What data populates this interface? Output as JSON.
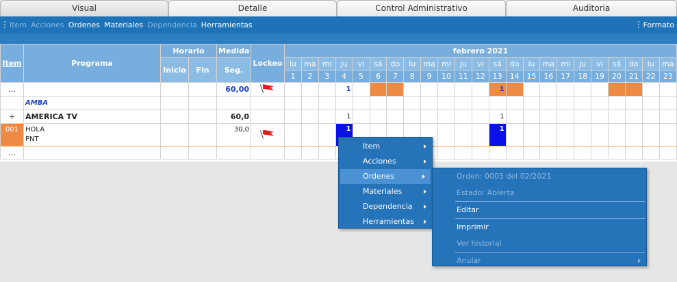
{
  "tabs": [
    "Visual",
    "Detalle",
    "Control Administrativo",
    "Auditoria"
  ],
  "toolbar": {
    "items": [
      "Item",
      "Acciones",
      "Ordenes",
      "Materiales",
      "Dependencia",
      "Herramientas"
    ],
    "format": "Formato"
  },
  "grid": {
    "col_item": "Item",
    "col_programa": "Programa",
    "col_horario": "Horario",
    "col_inicio": "Inicio",
    "col_fin": "Fin",
    "col_medida": "Medida",
    "col_seg": "Seg.",
    "col_lockeo": "Lockeo",
    "month": "febrero 2021",
    "weekdays": [
      "lu",
      "ma",
      "mi",
      "ju",
      "vi",
      "sá",
      "do",
      "lu",
      "ma",
      "mi",
      "ju",
      "vi",
      "sá",
      "do",
      "lu",
      "ma",
      "mi",
      "ju",
      "vi",
      "sá",
      "do",
      "lu",
      "ma"
    ],
    "days": [
      "1",
      "2",
      "3",
      "4",
      "5",
      "6",
      "7",
      "8",
      "9",
      "10",
      "11",
      "12",
      "13",
      "14",
      "15",
      "16",
      "17",
      "18",
      "19",
      "20",
      "21",
      "22",
      "23"
    ],
    "rows": {
      "r1": {
        "item": "...",
        "seg": "60,00",
        "d4": "1",
        "d13": "1"
      },
      "r2": {
        "programa": "AMBA"
      },
      "r3": {
        "item": "+",
        "programa": "AMERICA TV",
        "seg": "60,0",
        "d4": "1",
        "d13": "1"
      },
      "r4": {
        "item": "001",
        "programa_l1": "HOLA",
        "programa_l2": "PNT",
        "seg": "30,0",
        "d4": "1",
        "d13": "1"
      },
      "r5": {
        "item": "..."
      }
    }
  },
  "context_menu": {
    "items": [
      "Item",
      "Acciones",
      "Ordenes",
      "Materiales",
      "Dependencia",
      "Herramientas"
    ]
  },
  "submenu": {
    "orden": "Orden: 0003 del 02/2021",
    "estado": "Estado: Abierta",
    "editar": "Editar",
    "imprimir": "Imprimir",
    "ver_historial": "Ver historial",
    "anular": "Anular"
  },
  "colors": {
    "toolbar": "#1e73b8",
    "header": "#77aedd",
    "weekend": "#ef8a44",
    "selected": "#0a10e8"
  }
}
